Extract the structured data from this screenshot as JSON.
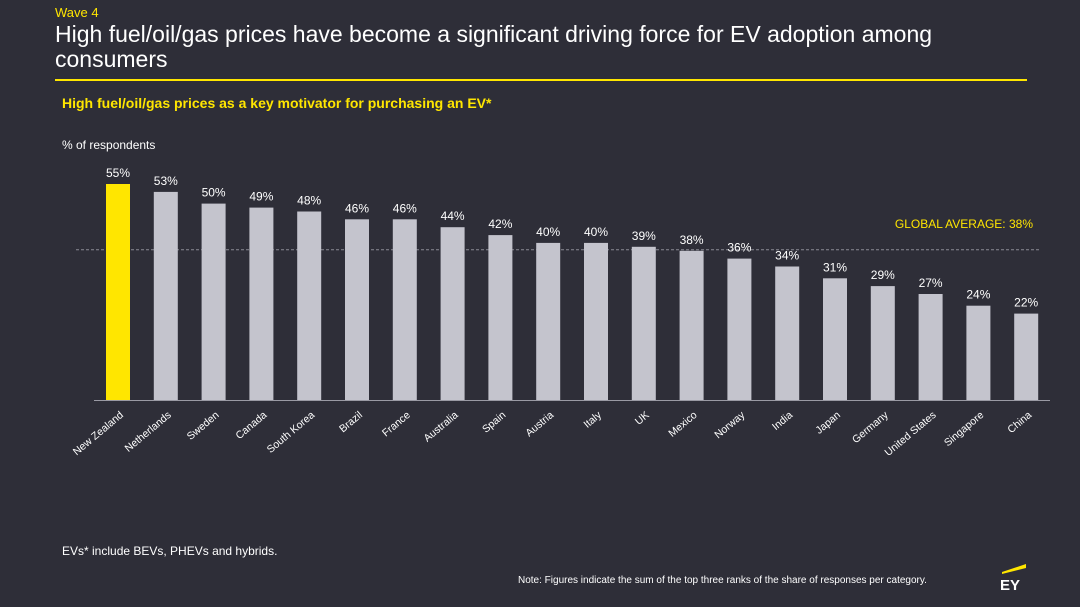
{
  "header": {
    "wave": "Wave 4",
    "title": "High fuel/oil/gas prices have become a significant driving force for EV adoption among consumers"
  },
  "colors": {
    "background": "#2e2e38",
    "accent": "#ffe600",
    "bar": "#c4c4cd",
    "text": "#ffffff"
  },
  "chart_data": {
    "type": "bar",
    "title": "High fuel/oil/gas prices as a key motivator for purchasing an EV*",
    "ylabel": "% of respondents",
    "xlabel": "",
    "ylim": [
      0,
      60
    ],
    "grid": false,
    "categories": [
      "New Zealand",
      "Netherlands",
      "Sweden",
      "Canada",
      "South Korea",
      "Brazil",
      "France",
      "Australia",
      "Spain",
      "Austria",
      "Italy",
      "UK",
      "Mexico",
      "Norway",
      "India",
      "Japan",
      "Germany",
      "United States",
      "Singapore",
      "China"
    ],
    "values": [
      55,
      53,
      50,
      49,
      48,
      46,
      46,
      44,
      42,
      40,
      40,
      39,
      38,
      36,
      34,
      31,
      29,
      27,
      24,
      22
    ],
    "value_labels": [
      "55%",
      "53%",
      "50%",
      "49%",
      "48%",
      "46%",
      "46%",
      "44%",
      "42%",
      "40%",
      "40%",
      "39%",
      "38%",
      "36%",
      "34%",
      "31%",
      "29%",
      "27%",
      "24%",
      "22%"
    ],
    "highlight_index": 0,
    "reference_line": {
      "value": 38,
      "label": "GLOBAL AVERAGE: 38%"
    }
  },
  "footer": {
    "footnote": "EVs* include BEVs, PHEVs and hybrids.",
    "note": "Note: Figures indicate the sum of the top three ranks of the share of responses per category.",
    "logo_text": "EY"
  }
}
